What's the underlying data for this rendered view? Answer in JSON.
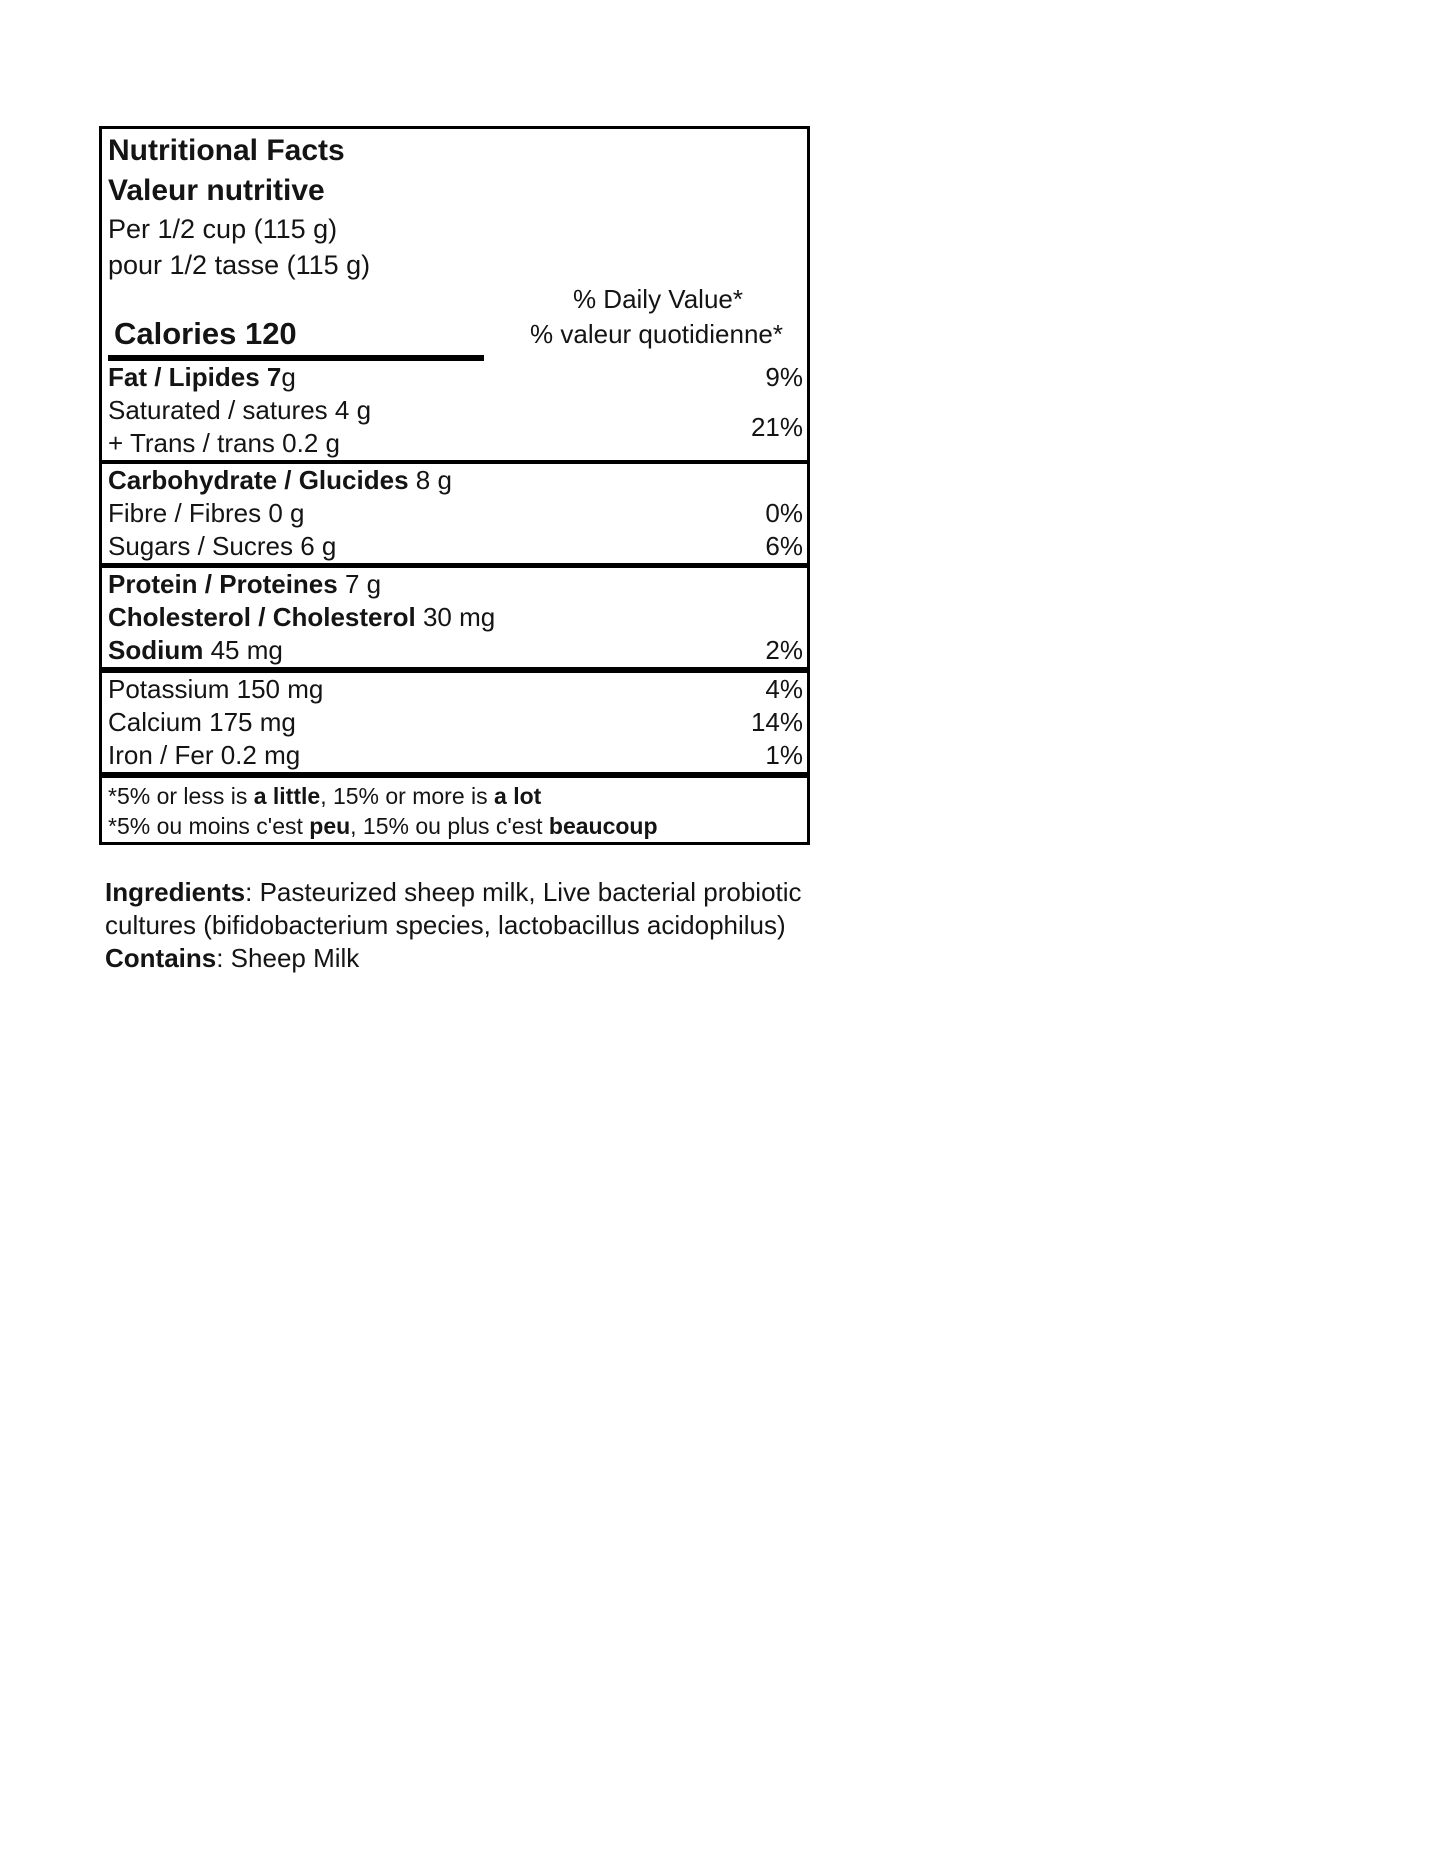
{
  "label": {
    "title_en": "Nutritional Facts",
    "title_fr": "Valeur nutritive",
    "serving_en": "Per 1/2 cup (115 g)",
    "serving_fr": "pour 1/2 tasse (115 g)",
    "daily_value_en": "% Daily Value*",
    "daily_value_fr": "% valeur quotidienne*",
    "calories": "Calories 120",
    "rows": {
      "fat": {
        "bold": "Fat / Lipides 7",
        "rest": "g",
        "pct": "9%"
      },
      "saturated": "Saturated / satures 4 g",
      "trans": "+ Trans / trans 0.2 g",
      "sat_trans_pct": "21%",
      "carbohydrate": {
        "bold": "Carbohydrate / Glucides",
        "rest": " 8 g",
        "pct": ""
      },
      "fibre": {
        "bold": "",
        "rest": "Fibre / Fibres 0 g",
        "pct": "0%"
      },
      "sugars": {
        "bold": "",
        "rest": "Sugars / Sucres 6 g",
        "pct": "6%"
      },
      "protein": {
        "bold": "Protein / Proteines",
        "rest": " 7 g",
        "pct": ""
      },
      "cholesterol": {
        "bold": "Cholesterol / Cholesterol",
        "rest": " 30 mg",
        "pct": ""
      },
      "sodium": {
        "bold": "Sodium",
        "rest": " 45 mg",
        "pct": "2%"
      },
      "potassium": {
        "bold": "",
        "rest": "Potassium 150 mg",
        "pct": "4%"
      },
      "calcium": {
        "bold": "",
        "rest": "Calcium 175 mg",
        "pct": "14%"
      },
      "iron": {
        "bold": "",
        "rest": "Iron / Fer 0.2 mg",
        "pct": "1%"
      }
    },
    "footnote_en": {
      "p1": "*5% or less is ",
      "b1": "a little",
      "p2": ", 15% or more is ",
      "b2": "a lot"
    },
    "footnote_fr": {
      "p1": "*5% ou moins c'est ",
      "b1": "peu",
      "p2": ", 15% ou plus c'est ",
      "b2": "beaucoup"
    }
  },
  "ingredients": {
    "bold": "Ingredients",
    "line1_rest": ": Pasteurized sheep milk, Live bacterial probiotic",
    "line2": "cultures (bifidobacterium species, lactobacillus acidophilus)",
    "contains_bold": "Contains",
    "contains_rest": ": Sheep Milk"
  }
}
